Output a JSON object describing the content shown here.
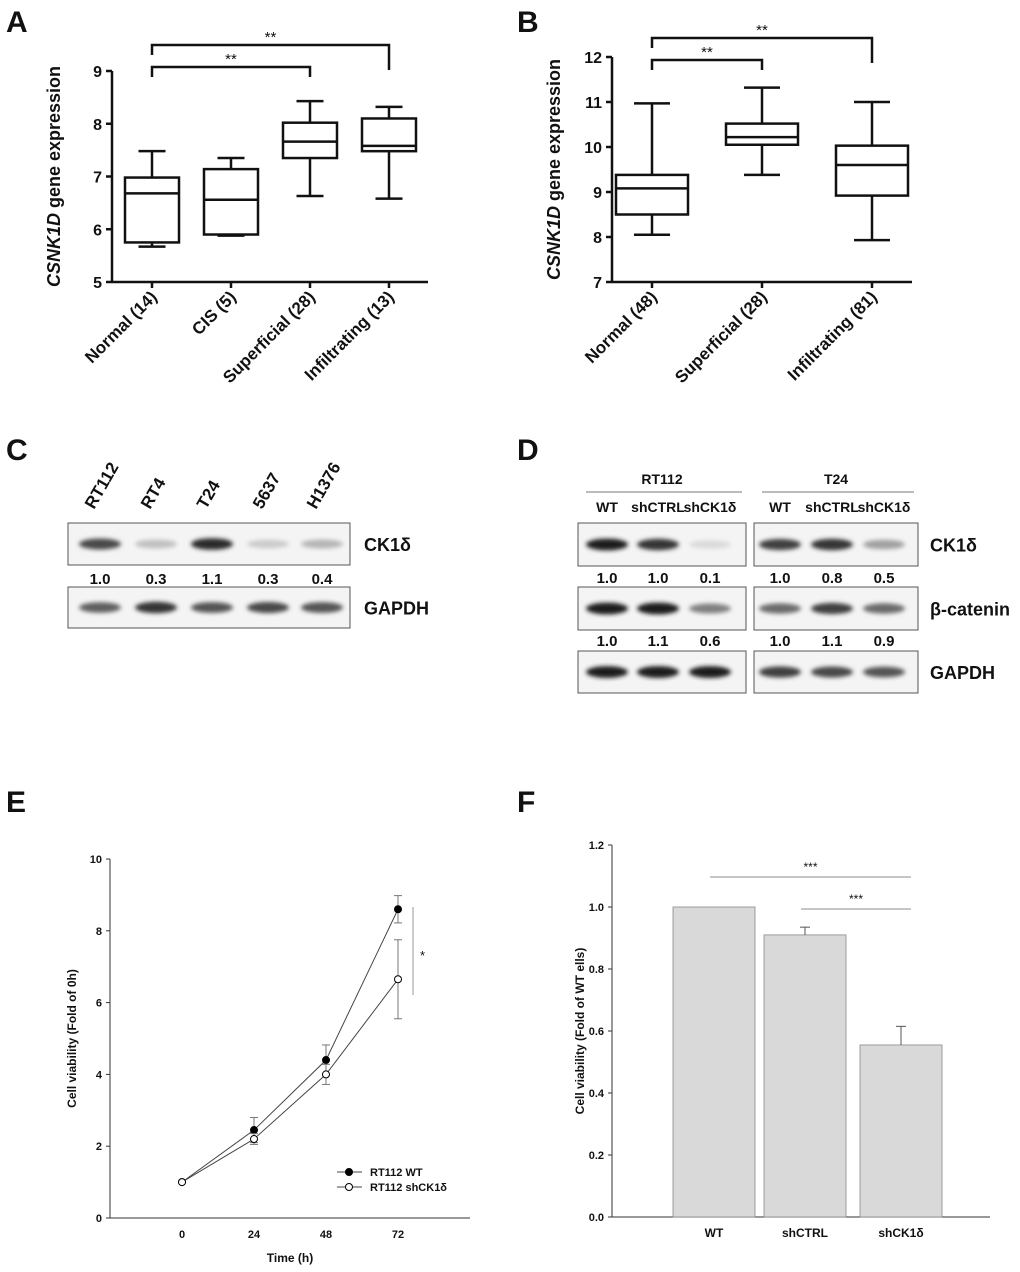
{
  "chart_data": [
    {
      "panel": "A",
      "type": "box",
      "ylabel_italic": "CSNK1D",
      "ylabel_rest": " gene expression",
      "ylim": [
        5,
        9
      ],
      "yticks": [
        5,
        6,
        7,
        8,
        9
      ],
      "categories": [
        "Normal (14)",
        "CIS (5)",
        "Superficial (28)",
        "Infiltrating (13)"
      ],
      "boxes": [
        {
          "min": 5.67,
          "q1": 5.75,
          "median": 6.68,
          "q3": 6.98,
          "max": 7.48
        },
        {
          "min": 5.88,
          "q1": 5.9,
          "median": 6.56,
          "q3": 7.14,
          "max": 7.35
        },
        {
          "min": 6.63,
          "q1": 7.35,
          "median": 7.66,
          "q3": 8.02,
          "max": 8.43
        },
        {
          "min": 6.58,
          "q1": 7.48,
          "median": 7.58,
          "q3": 8.1,
          "max": 8.32
        }
      ],
      "significance": [
        {
          "from": 0,
          "to": 2,
          "label": "**"
        },
        {
          "from": 0,
          "to": 3,
          "label": "**"
        }
      ]
    },
    {
      "panel": "B",
      "type": "box",
      "ylabel_italic": "CSNK1D",
      "ylabel_rest": " gene expression",
      "ylim": [
        7,
        12
      ],
      "yticks": [
        7,
        8,
        9,
        10,
        11,
        12
      ],
      "categories": [
        "Normal (48)",
        "Superficial (28)",
        "Infiltrating (81)"
      ],
      "boxes": [
        {
          "min": 8.05,
          "q1": 8.5,
          "median": 9.08,
          "q3": 9.38,
          "max": 10.97
        },
        {
          "min": 9.38,
          "q1": 10.05,
          "median": 10.22,
          "q3": 10.52,
          "max": 11.32
        },
        {
          "min": 7.93,
          "q1": 8.92,
          "median": 9.6,
          "q3": 10.03,
          "max": 11.0
        }
      ],
      "significance": [
        {
          "from": 0,
          "to": 1,
          "label": "**"
        },
        {
          "from": 0,
          "to": 2,
          "label": "**"
        }
      ]
    },
    {
      "panel": "E",
      "type": "line",
      "xlabel": "Time (h)",
      "ylabel": "Cell viability (Fold of 0h)",
      "xlim": [
        -24,
        96
      ],
      "ylim": [
        0,
        10
      ],
      "xticks": [
        0,
        24,
        48,
        72
      ],
      "yticks": [
        0,
        2,
        4,
        6,
        8,
        10
      ],
      "legend_position": "bottom-right",
      "series": [
        {
          "name": "RT112 WT",
          "marker": "filled",
          "x": [
            0,
            24,
            48,
            72
          ],
          "y": [
            1.0,
            2.45,
            4.4,
            8.6
          ],
          "err": [
            0,
            0.35,
            0.42,
            0.38
          ]
        },
        {
          "name": "RT112 shCK1δ",
          "marker": "open",
          "x": [
            0,
            24,
            48,
            72
          ],
          "y": [
            1.0,
            2.2,
            4.0,
            6.65
          ],
          "err": [
            0,
            0.15,
            0.28,
            1.1
          ]
        }
      ],
      "annotation": "*"
    },
    {
      "panel": "F",
      "type": "bar",
      "ylabel": "Cell viability (Fold of WT ells)",
      "ylim": [
        0,
        1.2
      ],
      "yticks": [
        "0.0",
        "0.2",
        "0.4",
        "0.6",
        "0.8",
        "1.0",
        "1.2"
      ],
      "categories": [
        "WT",
        "shCTRL",
        "shCK1δ"
      ],
      "values": [
        1.0,
        0.91,
        0.555
      ],
      "err": [
        0,
        0.025,
        0.06
      ],
      "bar_color": "#d9d9d9",
      "significance": [
        {
          "from": 0,
          "to": 2,
          "label": "***"
        },
        {
          "from": 1,
          "to": 2,
          "label": "***"
        }
      ]
    }
  ],
  "panels": {
    "A": "A",
    "B": "B",
    "C": "C",
    "D": "D",
    "E": "E",
    "F": "F"
  },
  "blot_c": {
    "lanes": [
      "RT112",
      "RT4",
      "T24",
      "5637",
      "H1376"
    ],
    "rows": [
      {
        "label": "CK1δ",
        "intensity": [
          0.75,
          0.2,
          0.9,
          0.15,
          0.25
        ]
      },
      {
        "label": "GAPDH",
        "intensity": [
          0.65,
          0.85,
          0.7,
          0.75,
          0.7
        ]
      }
    ],
    "quant": [
      "1.0",
      "0.3",
      "1.1",
      "0.3",
      "0.4"
    ]
  },
  "blot_d": {
    "groups": [
      {
        "name": "RT112",
        "lanes": [
          "WT",
          "shCTRL",
          "shCK1δ"
        ],
        "rows": [
          [
            0.95,
            0.85,
            0.08
          ],
          [
            0.95,
            0.95,
            0.5
          ],
          [
            0.95,
            0.95,
            0.95
          ]
        ],
        "quant": [
          [
            "1.0",
            "1.0",
            "0.1"
          ],
          [
            "1.0",
            "1.1",
            "0.6"
          ]
        ]
      },
      {
        "name": "T24",
        "lanes": [
          "WT",
          "shCTRL",
          "shCK1δ"
        ],
        "rows": [
          [
            0.8,
            0.85,
            0.35
          ],
          [
            0.6,
            0.8,
            0.6
          ],
          [
            0.8,
            0.75,
            0.7
          ]
        ],
        "quant": [
          [
            "1.0",
            "0.8",
            "0.5"
          ],
          [
            "1.0",
            "1.1",
            "0.9"
          ]
        ]
      }
    ],
    "row_labels": [
      "CK1δ",
      "β-catenin",
      "GAPDH"
    ]
  }
}
